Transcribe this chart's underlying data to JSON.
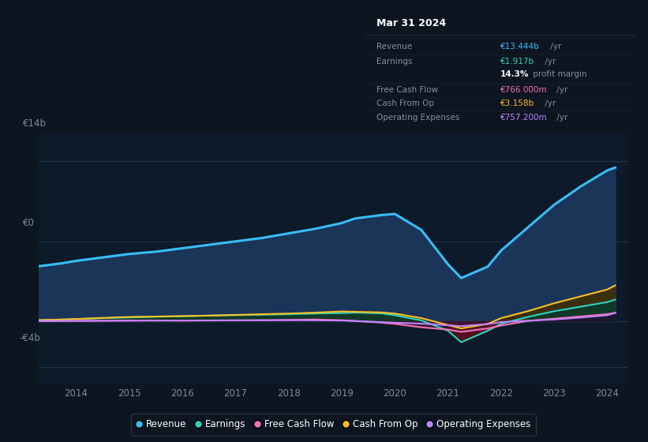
{
  "background_color": "#0d1520",
  "plot_bg_color": "#0d1a2a",
  "years": [
    2013.25,
    2013.75,
    2014.0,
    2014.5,
    2015.0,
    2015.5,
    2016.0,
    2016.5,
    2017.0,
    2017.5,
    2018.0,
    2018.5,
    2019.0,
    2019.25,
    2019.75,
    2020.0,
    2020.5,
    2021.0,
    2021.25,
    2021.75,
    2022.0,
    2022.5,
    2023.0,
    2023.5,
    2024.0,
    2024.15
  ],
  "revenue": [
    4.8,
    5.1,
    5.3,
    5.6,
    5.9,
    6.1,
    6.4,
    6.7,
    7.0,
    7.3,
    7.7,
    8.1,
    8.6,
    9.0,
    9.3,
    9.4,
    8.0,
    5.0,
    3.8,
    4.8,
    6.2,
    8.2,
    10.2,
    11.8,
    13.2,
    13.444
  ],
  "earnings": [
    0.12,
    0.18,
    0.22,
    0.3,
    0.36,
    0.42,
    0.46,
    0.52,
    0.56,
    0.6,
    0.64,
    0.7,
    0.74,
    0.78,
    0.72,
    0.55,
    0.1,
    -0.8,
    -1.8,
    -0.8,
    -0.2,
    0.4,
    0.9,
    1.3,
    1.7,
    1.917
  ],
  "free_cash_flow": [
    0.04,
    0.05,
    0.05,
    0.07,
    0.08,
    0.09,
    0.08,
    0.09,
    0.1,
    0.11,
    0.14,
    0.18,
    0.12,
    0.05,
    -0.1,
    -0.2,
    -0.5,
    -0.7,
    -0.9,
    -0.6,
    -0.35,
    0.05,
    0.25,
    0.45,
    0.65,
    0.766
  ],
  "cash_from_op": [
    0.12,
    0.18,
    0.22,
    0.32,
    0.4,
    0.44,
    0.48,
    0.52,
    0.58,
    0.64,
    0.7,
    0.78,
    0.88,
    0.85,
    0.8,
    0.7,
    0.3,
    -0.3,
    -0.6,
    -0.2,
    0.3,
    0.9,
    1.6,
    2.2,
    2.8,
    3.158
  ],
  "operating_expenses": [
    0.04,
    0.05,
    0.06,
    0.07,
    0.08,
    0.09,
    0.09,
    0.1,
    0.11,
    0.12,
    0.12,
    0.11,
    0.09,
    0.05,
    -0.05,
    -0.1,
    -0.18,
    -0.32,
    -0.4,
    -0.22,
    -0.05,
    0.08,
    0.18,
    0.35,
    0.55,
    0.757
  ],
  "revenue_color": "#38bdf8",
  "earnings_color": "#2dd4bf",
  "free_cash_flow_color": "#f472b6",
  "cash_from_op_color": "#fbbf24",
  "operating_expenses_color": "#c084fc",
  "revenue_fill_color": "#1b3558",
  "ylim_min": -5.5,
  "ylim_max": 16.5,
  "yticks": [
    -4,
    0,
    14
  ],
  "ytick_labels": [
    "-€4b",
    "€0",
    "€14b"
  ],
  "xticks": [
    2014,
    2015,
    2016,
    2017,
    2018,
    2019,
    2020,
    2021,
    2022,
    2023,
    2024
  ],
  "legend_items": [
    {
      "label": "Revenue",
      "color": "#38bdf8"
    },
    {
      "label": "Earnings",
      "color": "#2dd4bf"
    },
    {
      "label": "Free Cash Flow",
      "color": "#f472b6"
    },
    {
      "label": "Cash From Op",
      "color": "#fbbf24"
    },
    {
      "label": "Operating Expenses",
      "color": "#c084fc"
    }
  ]
}
